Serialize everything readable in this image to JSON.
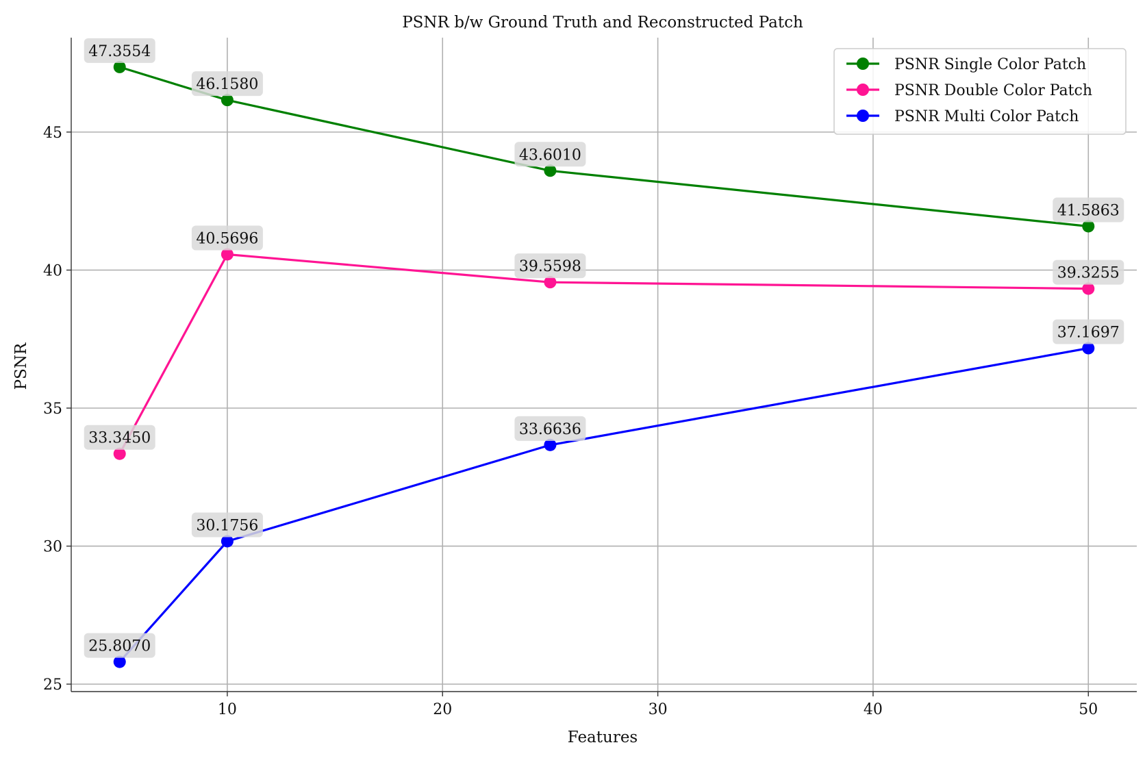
{
  "chart_data": {
    "type": "line",
    "title": "PSNR b/w Ground Truth and Reconstructed Patch",
    "xlabel": "Features",
    "ylabel": "PSNR",
    "xlim": [
      2.75,
      52.25
    ],
    "ylim": [
      24.73,
      48.42
    ],
    "xticks": [
      10,
      20,
      30,
      40,
      50
    ],
    "yticks": [
      25,
      30,
      35,
      40,
      45
    ],
    "grid": true,
    "legend_position": "top-right",
    "x": [
      5,
      10,
      25,
      50
    ],
    "series": [
      {
        "name": "PSNR Single Color Patch",
        "color": "#008000",
        "values": [
          47.3554,
          46.158,
          43.601,
          41.5863
        ],
        "labels": [
          "47.3554",
          "46.1580",
          "43.6010",
          "41.5863"
        ]
      },
      {
        "name": "PSNR Double Color Patch",
        "color": "#ff1493",
        "values": [
          33.345,
          40.5696,
          39.5598,
          39.3255
        ],
        "labels": [
          "33.3450",
          "40.5696",
          "39.5598",
          "39.3255"
        ]
      },
      {
        "name": "PSNR Multi Color Patch",
        "color": "#0000ff",
        "values": [
          25.807,
          30.1756,
          33.6636,
          37.1697
        ],
        "labels": [
          "25.8070",
          "30.1756",
          "33.6636",
          "37.1697"
        ]
      }
    ]
  }
}
